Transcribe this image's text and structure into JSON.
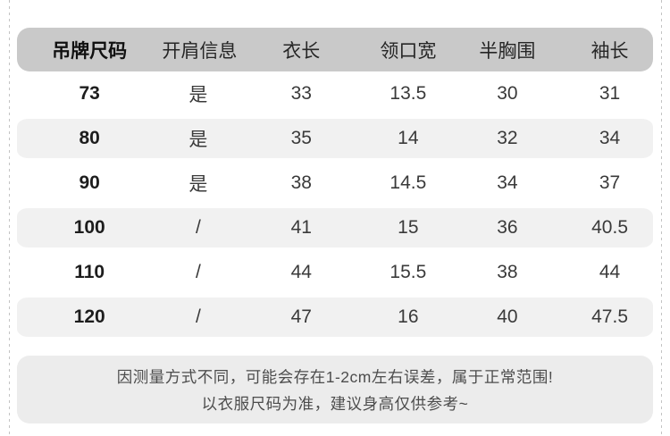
{
  "table": {
    "headers": [
      "吊牌尺码",
      "开肩信息",
      "衣长",
      "领口宽",
      "半胸围",
      "袖长"
    ],
    "rows": [
      [
        "73",
        "是",
        "33",
        "13.5",
        "30",
        "31"
      ],
      [
        "80",
        "是",
        "35",
        "14",
        "32",
        "34"
      ],
      [
        "90",
        "是",
        "38",
        "14.5",
        "34",
        "37"
      ],
      [
        "100",
        "/",
        "41",
        "15",
        "36",
        "40.5"
      ],
      [
        "110",
        "/",
        "44",
        "15.5",
        "38",
        "44"
      ],
      [
        "120",
        "/",
        "47",
        "16",
        "40",
        "47.5"
      ]
    ]
  },
  "note": {
    "line1": "因测量方式不同，可能会存在1-2cm左右误差，属于正常范围!",
    "line2": "以衣服尺码为准，建议身高仅供参考~"
  },
  "colors": {
    "header_bg": "#c9c9c9",
    "alt_row_bg": "#f1f1f1",
    "note_bg": "#ececec",
    "dash_border": "#c3c3c3",
    "text": "#3a3a3a"
  }
}
